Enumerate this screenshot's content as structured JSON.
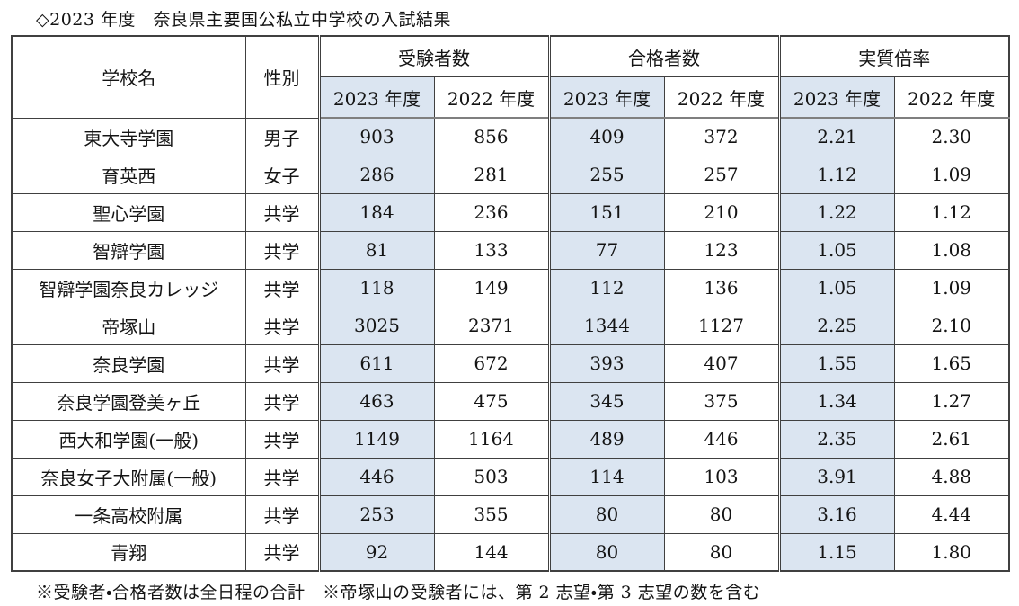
{
  "title": "◇2023 年度　奈良県主要国公私立中学校の入試結果",
  "table": {
    "headers": {
      "school": "学校名",
      "gender": "性別",
      "groups": [
        {
          "label": "受験者数",
          "sub_2023": "2023 年度",
          "sub_2022": "2022 年度"
        },
        {
          "label": "合格者数",
          "sub_2023": "2023 年度",
          "sub_2022": "2022 年度"
        },
        {
          "label": "実質倍率",
          "sub_2023": "2023 年度",
          "sub_2022": "2022 年度"
        }
      ]
    },
    "rows": [
      [
        "東大寺学園",
        "男子",
        "903",
        "856",
        "409",
        "372",
        "2.21",
        "2.30"
      ],
      [
        "育英西",
        "女子",
        "286",
        "281",
        "255",
        "257",
        "1.12",
        "1.09"
      ],
      [
        "聖心学園",
        "共学",
        "184",
        "236",
        "151",
        "210",
        "1.22",
        "1.12"
      ],
      [
        "智辯学園",
        "共学",
        "81",
        "133",
        "77",
        "123",
        "1.05",
        "1.08"
      ],
      [
        "智辯学園奈良カレッジ",
        "共学",
        "118",
        "149",
        "112",
        "136",
        "1.05",
        "1.09"
      ],
      [
        "帝塚山",
        "共学",
        "3025",
        "2371",
        "1344",
        "1127",
        "2.25",
        "2.10"
      ],
      [
        "奈良学園",
        "共学",
        "611",
        "672",
        "393",
        "407",
        "1.55",
        "1.65"
      ],
      [
        "奈良学園登美ヶ丘",
        "共学",
        "463",
        "475",
        "345",
        "375",
        "1.34",
        "1.27"
      ],
      [
        "西大和学園(一般)",
        "共学",
        "1149",
        "1164",
        "489",
        "446",
        "2.35",
        "2.61"
      ],
      [
        "奈良女子大附属(一般)",
        "共学",
        "446",
        "503",
        "114",
        "103",
        "3.91",
        "4.88"
      ],
      [
        "一条高校附属",
        "共学",
        "253",
        "355",
        "80",
        "80",
        "3.16",
        "4.44"
      ],
      [
        "青翔",
        "共学",
        "92",
        "144",
        "80",
        "80",
        "1.15",
        "1.80"
      ]
    ]
  },
  "footnote": "※受験者・合格者数は全日程の合計　※帝塚山の受験者には、第 2 志望・第 3 志望の数を含む",
  "colors": {
    "highlight_2023": "#dbe5f1",
    "border": "#404040",
    "text": "#141414"
  }
}
